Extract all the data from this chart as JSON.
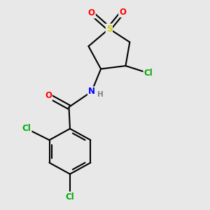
{
  "bg_color": "#e8e8e8",
  "bond_color": "#000000",
  "atom_colors": {
    "S": "#cccc00",
    "O": "#ff0000",
    "N": "#0000ff",
    "Cl": "#00aa00",
    "C": "#000000",
    "H": "#808080"
  },
  "bond_width": 1.5,
  "font_size_atoms": 8.5,
  "figsize": [
    3.0,
    3.0
  ],
  "dpi": 100
}
